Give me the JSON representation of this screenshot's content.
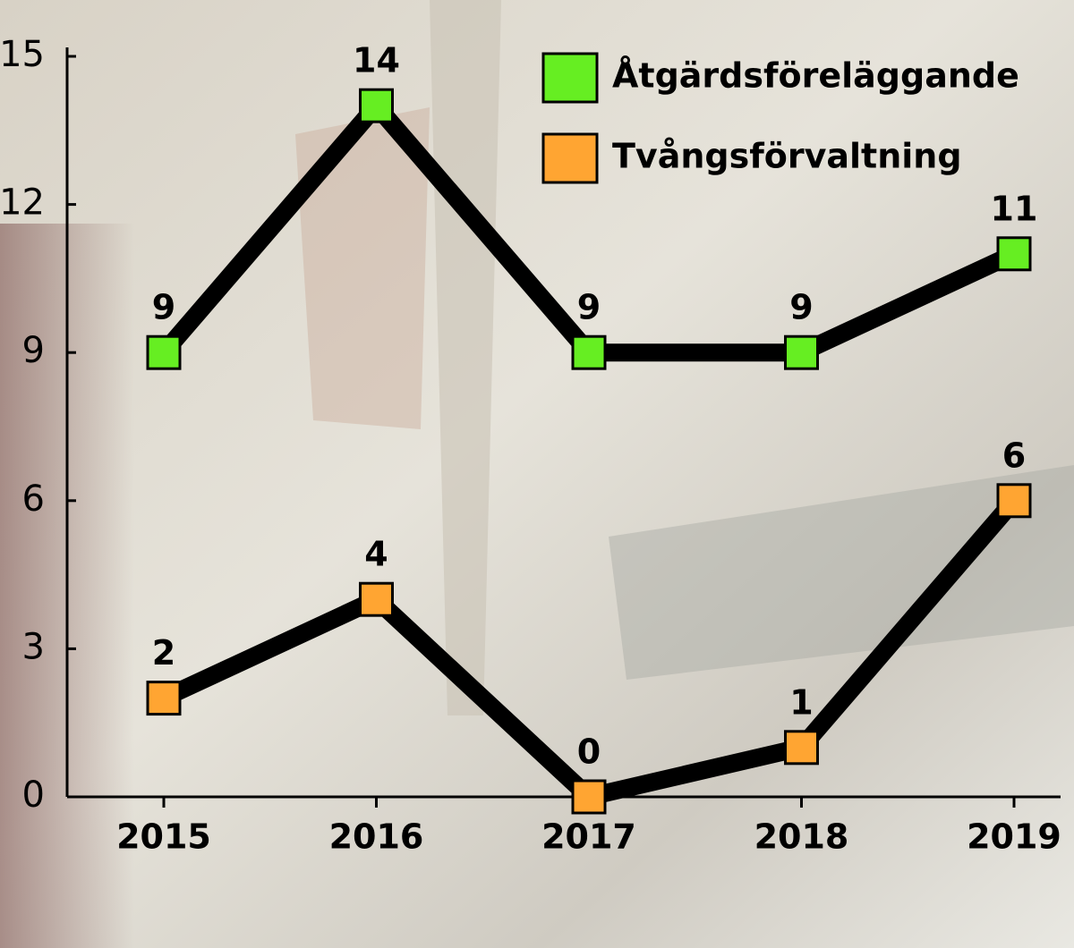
{
  "chart_data": {
    "type": "line",
    "categories": [
      "2015",
      "2016",
      "2017",
      "2018",
      "2019"
    ],
    "series": [
      {
        "name": "Åtgärdsföreläggande",
        "color": "#66ee22",
        "values": [
          9,
          14,
          9,
          9,
          11
        ]
      },
      {
        "name": "Tvångsförvaltning",
        "color": "#ffa532",
        "values": [
          2,
          4,
          0,
          1,
          6
        ]
      }
    ],
    "ylim": [
      0,
      15
    ],
    "yticks": [
      0,
      3,
      6,
      9,
      12,
      15
    ],
    "legend": "top-right"
  }
}
